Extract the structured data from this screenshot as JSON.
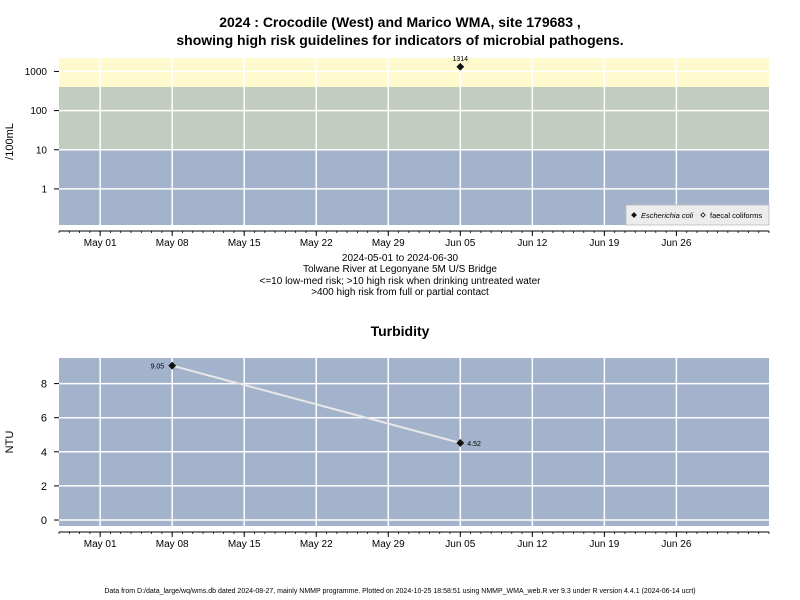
{
  "chart_data": [
    {
      "type": "scatter",
      "title_line1": "2024 : Crocodile (West) and Marico WMA, site 179683 ,",
      "title_line2": "showing high risk guidelines for indicators of microbial pathogens.",
      "ylabel": "/100mL",
      "y_scale": "log",
      "y_ticks": [
        1,
        10,
        100,
        1000
      ],
      "y_tick_labels": [
        "1",
        "10",
        "100",
        "1000"
      ],
      "ylim": [
        0.12,
        2200
      ],
      "xlim": [
        "2024-04-27",
        "2024-07-05"
      ],
      "x_ticks": [
        "2024-05-01",
        "2024-05-08",
        "2024-05-15",
        "2024-05-22",
        "2024-05-29",
        "2024-06-05",
        "2024-06-12",
        "2024-06-19",
        "2024-06-26"
      ],
      "x_tick_labels": [
        "May 01",
        "May 08",
        "May 15",
        "May 22",
        "May 29",
        "Jun 05",
        "Jun 12",
        "Jun 19",
        "Jun 26"
      ],
      "bands": [
        {
          "from": 0.12,
          "to": 10,
          "color": "#a3b3cc"
        },
        {
          "from": 10,
          "to": 400,
          "color": "#c2ccc0"
        },
        {
          "from": 400,
          "to": 2200,
          "color": "#fffacd"
        }
      ],
      "grid": true,
      "legend_position": "bottom-right",
      "series": [
        {
          "name": "Escherichia coli",
          "marker": "diamond-filled",
          "points": [
            {
              "x": "2024-06-05",
              "y": 1314,
              "label": "1314"
            }
          ]
        },
        {
          "name": "faecal coliforms",
          "marker": "diamond-open",
          "points": []
        }
      ],
      "caption": [
        "2024-05-01 to 2024-06-30",
        "Tolwane River at Legonyane 5M U/S Bridge",
        "<=10 low-med risk; >10 high risk when drinking untreated water",
        ">400 high risk from full or partial contact"
      ]
    },
    {
      "type": "line",
      "title": "Turbidity",
      "ylabel": "NTU",
      "ylim": [
        -0.35,
        9.5
      ],
      "y_ticks": [
        0,
        2,
        4,
        6,
        8
      ],
      "y_tick_labels": [
        "0",
        "2",
        "4",
        "6",
        "8"
      ],
      "xlim": [
        "2024-04-27",
        "2024-07-05"
      ],
      "x_ticks": [
        "2024-05-01",
        "2024-05-08",
        "2024-05-15",
        "2024-05-22",
        "2024-05-29",
        "2024-06-05",
        "2024-06-12",
        "2024-06-19",
        "2024-06-26"
      ],
      "x_tick_labels": [
        "May 01",
        "May 08",
        "May 15",
        "May 22",
        "May 29",
        "Jun 05",
        "Jun 12",
        "Jun 19",
        "Jun 26"
      ],
      "background": "#a3b3cc",
      "grid": true,
      "series": [
        {
          "points": [
            {
              "x": "2024-05-08",
              "y": 9.05,
              "label": "9.05"
            },
            {
              "x": "2024-06-05",
              "y": 4.52,
              "label": "4.52"
            }
          ]
        }
      ]
    }
  ],
  "footer": "Data from D:/data_large/wq/wms.db dated 2024-08-27, mainly NMMP programme. Plotted on 2024-10-25 18:58:51 using NMMP_WMA_web.R ver 9.3 under R version 4.4.1 (2024-06-14 ucrt)"
}
